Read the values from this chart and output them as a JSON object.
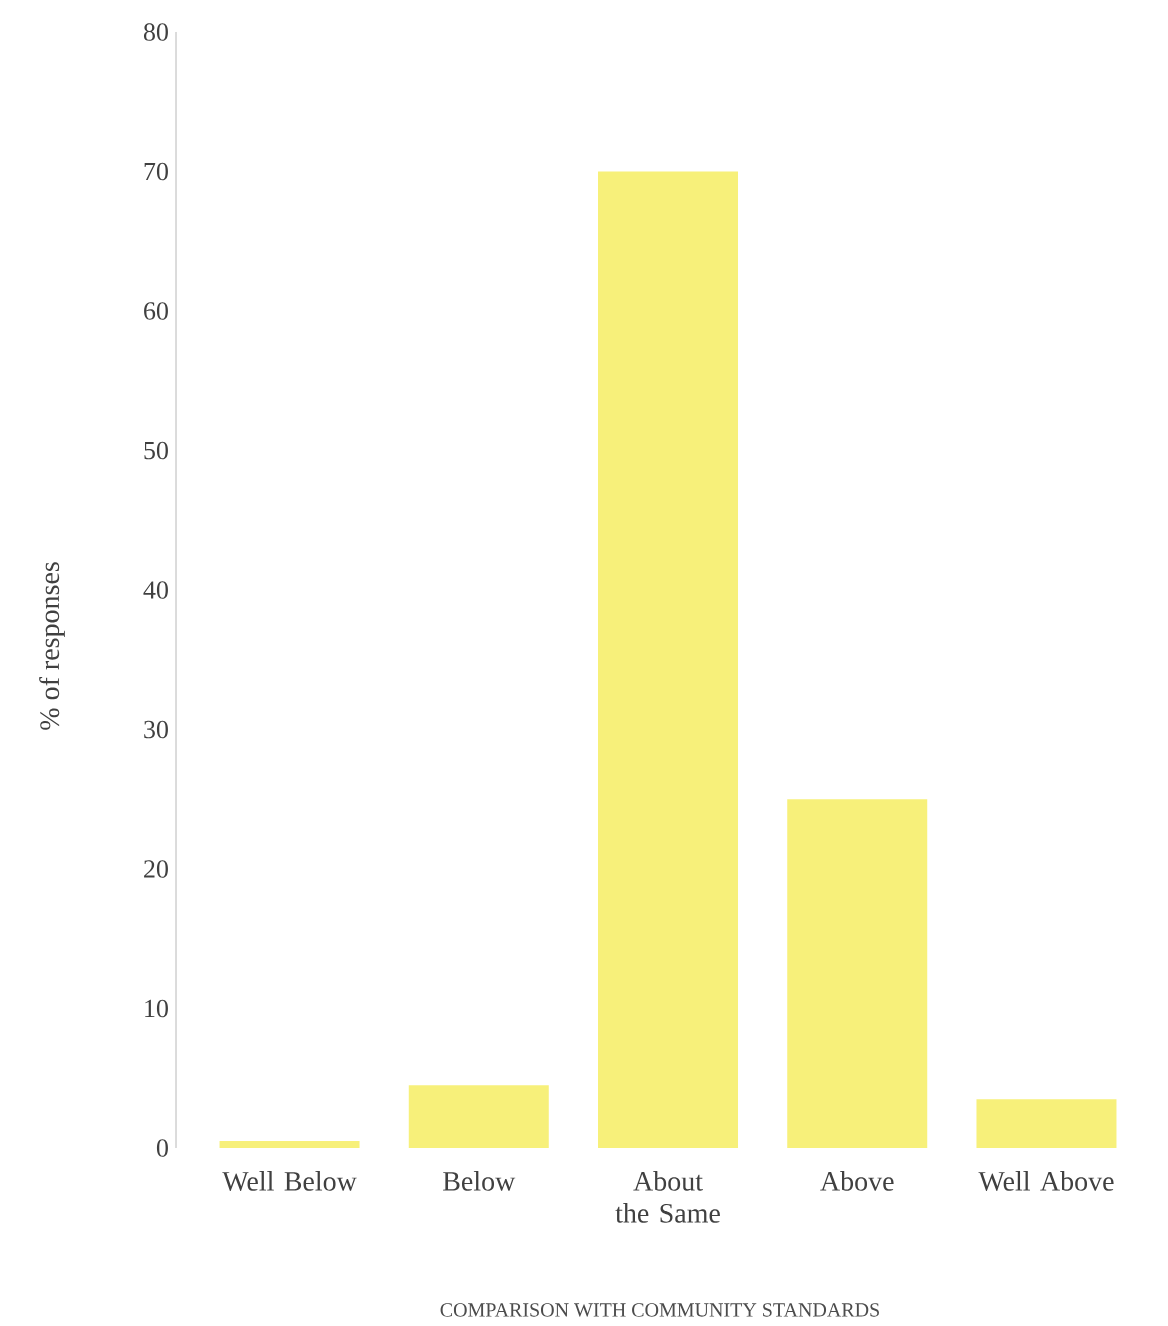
{
  "chart_data": {
    "type": "bar",
    "xlabel": "COMPARISON WITH COMMUNITY STANDARDS",
    "ylabel": "% of responses",
    "categories": [
      "Well Below",
      "Below",
      "About the Same",
      "Above",
      "Well Above"
    ],
    "values": [
      0.5,
      4.5,
      70,
      25,
      3.5
    ],
    "color": "#f7f07a",
    "ylim": [
      0,
      80
    ],
    "yticks": [
      0,
      10,
      20,
      30,
      40,
      50,
      60,
      70,
      80
    ],
    "grid": false
  }
}
